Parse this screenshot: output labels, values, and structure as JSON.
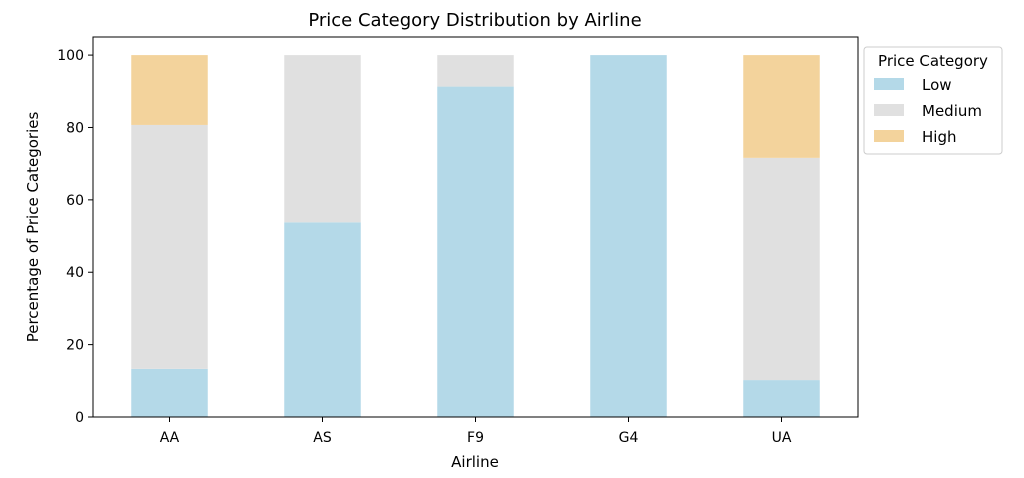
{
  "chart_data": {
    "type": "bar",
    "stacked": true,
    "title": "Price Category Distribution by Airline",
    "xlabel": "Airline",
    "ylabel": "Percentage of Price Categories",
    "categories": [
      "AA",
      "AS",
      "F9",
      "G4",
      "UA"
    ],
    "series": [
      {
        "name": "Low",
        "values": [
          13.3,
          53.8,
          91.3,
          100.0,
          10.2
        ],
        "color": "#b4d9e8"
      },
      {
        "name": "Medium",
        "values": [
          67.4,
          46.2,
          8.7,
          0.0,
          61.4
        ],
        "color": "#e0e0e0"
      },
      {
        "name": "High",
        "values": [
          19.3,
          0.0,
          0.0,
          0.0,
          28.4
        ],
        "color": "#f3d39c"
      }
    ],
    "ylim": [
      0,
      105
    ],
    "yticks": [
      0,
      20,
      40,
      60,
      80,
      100
    ],
    "grid": false,
    "legend": {
      "title": "Price Category",
      "placement": "outside-right-top"
    }
  }
}
